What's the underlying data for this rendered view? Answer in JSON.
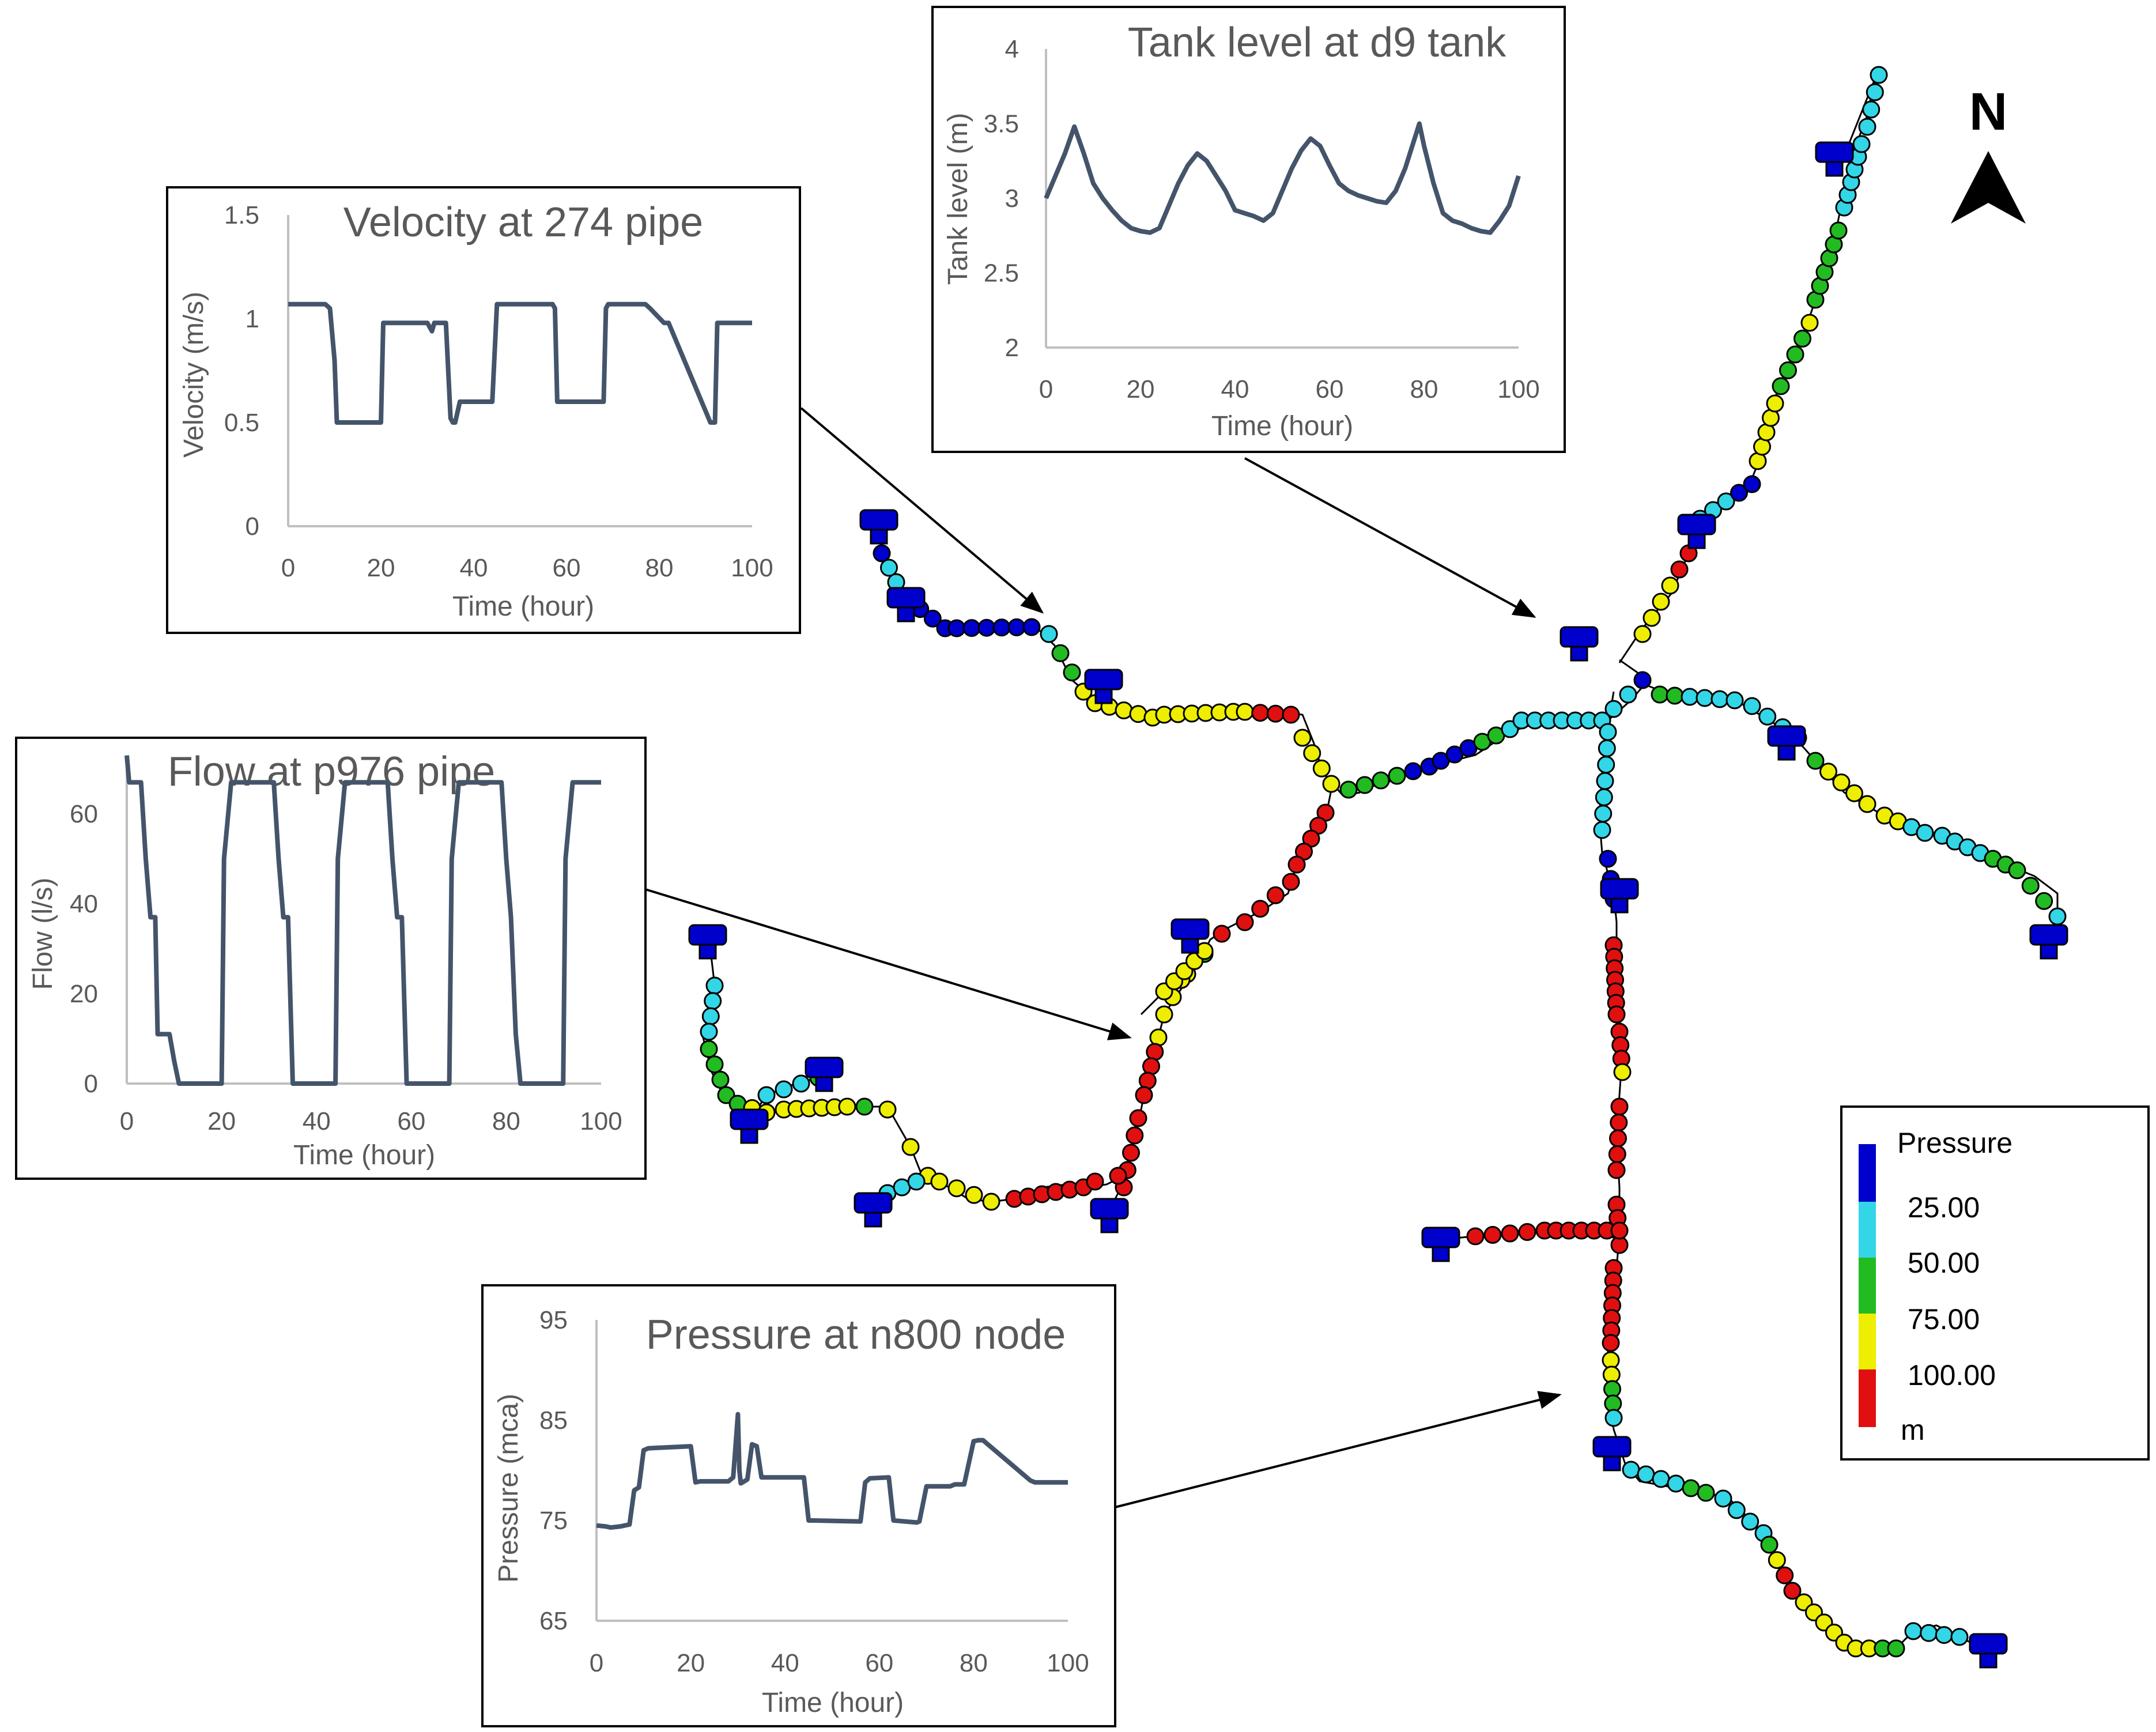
{
  "north_label": "N",
  "legend": {
    "title": "Pressure",
    "levels": [
      "25.00",
      "50.00",
      "75.00",
      "100.00"
    ],
    "unit": "m",
    "colors": [
      "#0000cc",
      "#33d6e6",
      "#22bb22",
      "#eeee00",
      "#e01010"
    ]
  },
  "charts": {
    "velocity": {
      "title": "Velocity at 274 pipe",
      "xlabel": "Time (hour)",
      "ylabel": "Velocity (m/s)",
      "xticks": [
        "0",
        "20",
        "40",
        "60",
        "80",
        "100"
      ],
      "yticks": [
        "0",
        "0.5",
        "1",
        "1.5"
      ]
    },
    "tank": {
      "title": "Tank level at d9 tank",
      "xlabel": "Time (hour)",
      "ylabel": "Tank level (m)",
      "xticks": [
        "0",
        "20",
        "40",
        "60",
        "80",
        "100"
      ],
      "yticks": [
        "2",
        "2.5",
        "3",
        "3.5",
        "4"
      ]
    },
    "flow": {
      "title": "Flow at p976 pipe",
      "xlabel": "Time (hour)",
      "ylabel": "Flow (l/s)",
      "xticks": [
        "0",
        "20",
        "40",
        "60",
        "80",
        "100"
      ],
      "yticks": [
        "0",
        "20",
        "40",
        "60"
      ]
    },
    "pressure": {
      "title": "Pressure at n800 node",
      "xlabel": "Time (hour)",
      "ylabel": "Pressure (mca)",
      "xticks": [
        "0",
        "20",
        "40",
        "60",
        "80",
        "100"
      ],
      "yticks": [
        "65",
        "75",
        "85",
        "95"
      ]
    }
  },
  "chart_data": [
    {
      "type": "line",
      "title": "Velocity at 274 pipe",
      "xlabel": "Time (hour)",
      "ylabel": "Velocity (m/s)",
      "xlim": [
        0,
        100
      ],
      "ylim": [
        0,
        1.5
      ],
      "series": [
        {
          "x": [
            0,
            8,
            9,
            10,
            10.5,
            20,
            20.5,
            30,
            31,
            31.5,
            32,
            34,
            35,
            35.5,
            36,
            37,
            44,
            45,
            45.5,
            57,
            57.5,
            58,
            68,
            68.5,
            69,
            77,
            78,
            81,
            82,
            91,
            92,
            92.5,
            100
          ],
          "y": [
            1.07,
            1.07,
            1.05,
            0.8,
            0.5,
            0.5,
            0.98,
            0.98,
            0.94,
            0.98,
            0.98,
            0.98,
            0.52,
            0.5,
            0.5,
            0.6,
            0.6,
            1.07,
            1.07,
            1.07,
            1.05,
            0.6,
            0.6,
            1.05,
            1.07,
            1.07,
            1.05,
            0.98,
            0.98,
            0.5,
            0.5,
            0.98,
            0.98
          ]
        }
      ]
    },
    {
      "type": "line",
      "title": "Tank level at d9 tank",
      "xlabel": "Time (hour)",
      "ylabel": "Tank level (m)",
      "xlim": [
        0,
        100
      ],
      "ylim": [
        2,
        4
      ],
      "series": [
        {
          "x": [
            0,
            2,
            4,
            6,
            8,
            10,
            12,
            14,
            16,
            18,
            20,
            22,
            24,
            26,
            28,
            30,
            32,
            34,
            36,
            38,
            40,
            42,
            44,
            46,
            48,
            50,
            52,
            54,
            56,
            58,
            60,
            62,
            64,
            66,
            68,
            70,
            72,
            74,
            76,
            78,
            79,
            80,
            82,
            84,
            86,
            88,
            90,
            92,
            94,
            96,
            98,
            100
          ],
          "y": [
            3.0,
            3.15,
            3.3,
            3.48,
            3.3,
            3.1,
            3.0,
            2.92,
            2.85,
            2.8,
            2.78,
            2.77,
            2.8,
            2.95,
            3.1,
            3.22,
            3.3,
            3.25,
            3.15,
            3.05,
            2.92,
            2.9,
            2.88,
            2.85,
            2.9,
            3.05,
            3.2,
            3.32,
            3.4,
            3.35,
            3.22,
            3.1,
            3.05,
            3.02,
            3.0,
            2.98,
            2.97,
            3.05,
            3.2,
            3.4,
            3.5,
            3.35,
            3.1,
            2.9,
            2.85,
            2.83,
            2.8,
            2.78,
            2.77,
            2.85,
            2.95,
            3.15
          ]
        }
      ]
    },
    {
      "type": "line",
      "title": "Flow at p976 pipe",
      "xlabel": "Time (hour)",
      "ylabel": "Flow (l/s)",
      "xlim": [
        0,
        100
      ],
      "ylim": [
        0,
        70
      ],
      "series": [
        {
          "x": [
            0,
            0.5,
            3,
            4,
            5,
            6,
            6.5,
            7,
            9,
            10,
            11,
            20,
            20.5,
            22,
            31,
            32,
            33,
            34,
            35,
            44,
            44.5,
            46,
            55,
            56,
            57,
            58,
            59,
            68,
            68.5,
            70,
            79,
            80,
            81,
            82,
            83,
            92,
            92.5,
            94,
            100
          ],
          "y": [
            73,
            67,
            67,
            50,
            37,
            37,
            11,
            11,
            11,
            5,
            0,
            0,
            50,
            67,
            67,
            50,
            37,
            37,
            0,
            0,
            50,
            67,
            67,
            50,
            37,
            37,
            0,
            0,
            50,
            67,
            67,
            50,
            37,
            11,
            0,
            0,
            50,
            67,
            67
          ]
        }
      ]
    },
    {
      "type": "line",
      "title": "Pressure at n800 node",
      "xlabel": "Time (hour)",
      "ylabel": "Pressure (mca)",
      "xlim": [
        0,
        100
      ],
      "ylim": [
        65,
        95
      ],
      "series": [
        {
          "x": [
            0,
            2,
            3,
            5,
            6,
            7,
            8,
            9,
            10,
            11,
            20,
            21,
            22,
            28,
            29,
            30,
            30.3,
            30.6,
            31,
            32,
            33,
            34,
            35,
            44,
            45,
            46,
            56,
            57,
            58,
            62,
            63,
            68,
            68.5,
            70,
            75,
            76,
            78,
            80,
            81,
            82,
            83,
            92,
            93,
            100
          ],
          "y": [
            74.5,
            74.4,
            74.3,
            74.4,
            74.5,
            74.6,
            78,
            78.3,
            82,
            82.2,
            82.4,
            78.8,
            78.9,
            78.9,
            79.3,
            85.6,
            80,
            78.7,
            78.8,
            79.1,
            82.6,
            82.4,
            79.3,
            79.3,
            75,
            75,
            74.9,
            78.8,
            79.2,
            79.3,
            75,
            74.8,
            74.9,
            78.4,
            78.4,
            78.6,
            78.6,
            82.9,
            83,
            83,
            82.6,
            79,
            78.8,
            78.8
          ]
        }
      ]
    }
  ]
}
